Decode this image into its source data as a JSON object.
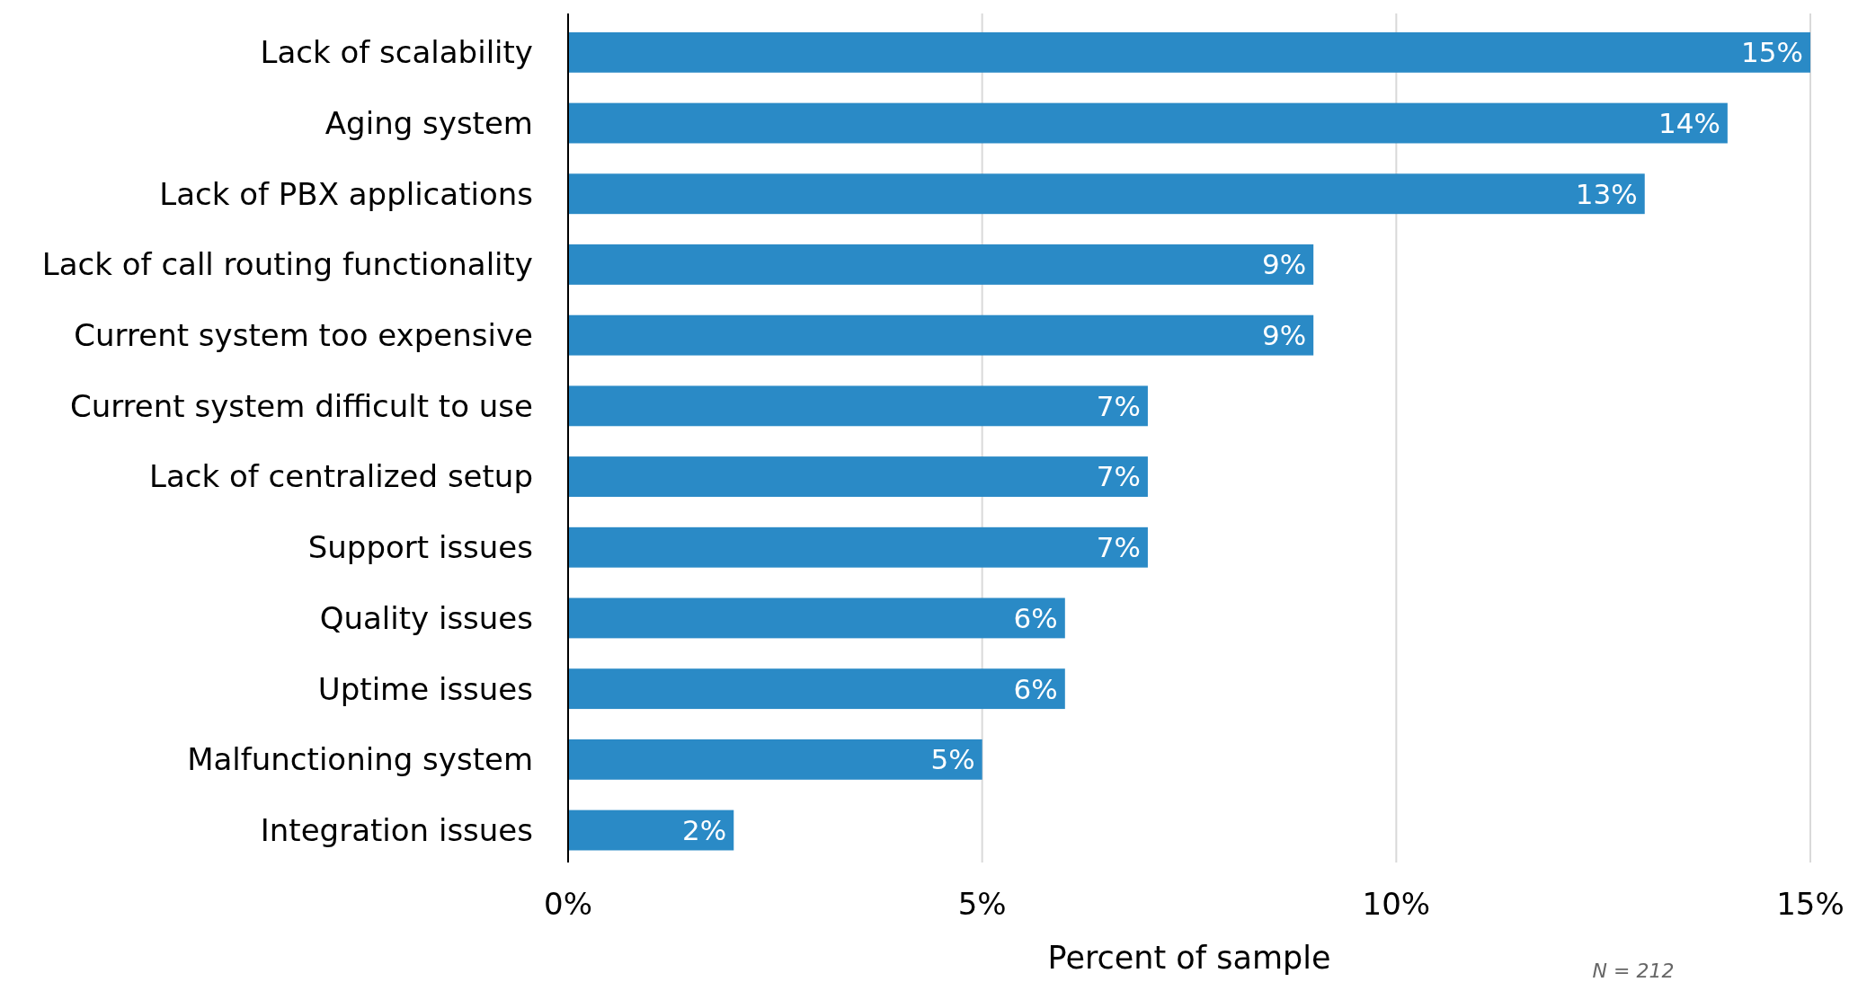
{
  "chart_data": {
    "type": "bar",
    "orientation": "horizontal",
    "xlabel": "Percent of sample",
    "categories": [
      "Lack of scalability",
      "Aging system",
      "Lack of PBX applications",
      "Lack of call routing functionality",
      "Current system too expensive",
      "Current system difficult to use",
      "Lack of centralized setup",
      "Support issues",
      "Quality issues",
      "Uptime issues",
      "Malfunctioning system",
      "Integration issues"
    ],
    "values": [
      15,
      14,
      13,
      9,
      9,
      7,
      7,
      7,
      6,
      6,
      5,
      2
    ],
    "value_labels": [
      "15%",
      "14%",
      "13%",
      "9%",
      "9%",
      "7%",
      "7%",
      "7%",
      "6%",
      "6%",
      "5%",
      "2%"
    ],
    "color": "#2a8ac6",
    "xlim": [
      0,
      15
    ],
    "xticks": [
      {
        "value": 0,
        "label": "0%"
      },
      {
        "value": 5,
        "label": "5%"
      },
      {
        "value": 10,
        "label": "10%"
      },
      {
        "value": 15,
        "label": "15%"
      }
    ],
    "grid": "x",
    "annotations": [
      "N = 212"
    ]
  }
}
